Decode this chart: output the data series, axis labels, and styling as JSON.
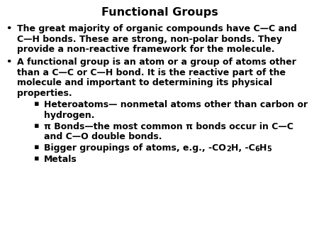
{
  "title": "Functional Groups",
  "background_color": "#ffffff",
  "text_color": "#000000",
  "title_fontsize": 11.5,
  "body_fontsize": 9.0,
  "font_family": "DejaVu Sans",
  "bullet1_line1": "The great majority of organic compounds have C—C and",
  "bullet1_line2": "C—H bonds. These are strong, non-polar bonds. They",
  "bullet1_line3": "provide a non-reactive framework for the molecule.",
  "bullet2_line1": "A functional group is an atom or a group of atoms other",
  "bullet2_line2": "than a C—C or C—H bond. It is the reactive part of the",
  "bullet2_line3": "molecule and important to determining its physical",
  "bullet2_line4": "properties.",
  "sub1_line1": "Heteroatoms— nonmetal atoms other than carbon or",
  "sub1_line2": "hydrogen.",
  "sub2_line1": "π Bonds—the most common π bonds occur in C—C",
  "sub2_line2": "and C—O double bonds.",
  "sub3_line1a": "Bigger groupings of atoms, e.g., -CO",
  "sub3_line1b": "2",
  "sub3_line1c": "H, -C",
  "sub3_line1d": "6",
  "sub3_line1e": "H",
  "sub3_line1f": "5",
  "sub4_line1": "Metals"
}
